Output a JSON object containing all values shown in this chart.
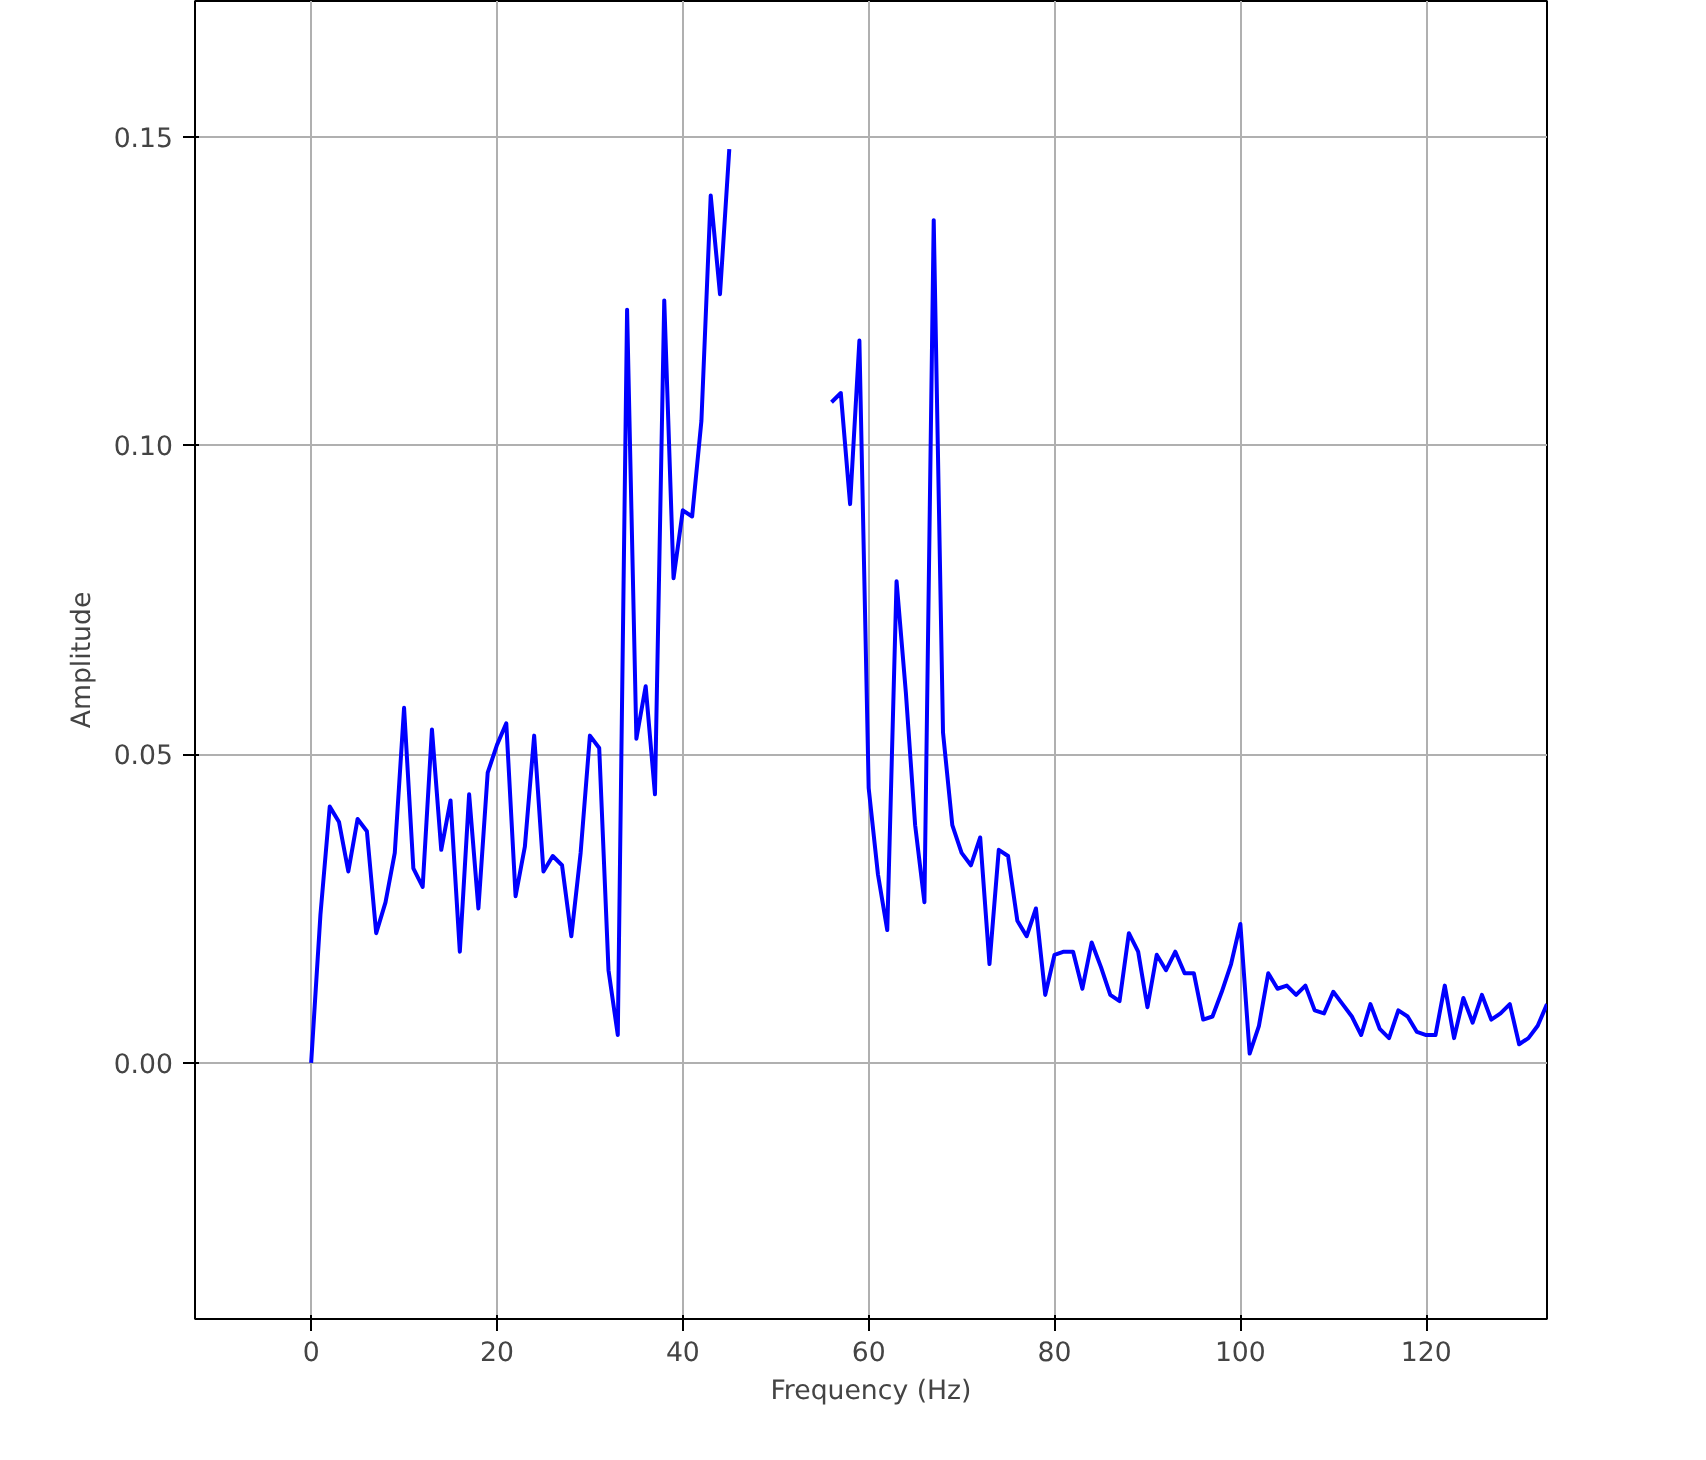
{
  "chart_data": {
    "type": "line",
    "xlabel": "Frequency (Hz)",
    "ylabel": "Amplitude",
    "x": [
      0,
      1,
      2,
      3,
      4,
      5,
      6,
      7,
      8,
      9,
      10,
      11,
      12,
      13,
      14,
      15,
      16,
      17,
      18,
      19,
      20,
      21,
      22,
      23,
      24,
      25,
      26,
      27,
      28,
      29,
      30,
      31,
      32,
      33,
      34,
      35,
      36,
      37,
      38,
      39,
      40,
      41,
      42,
      43,
      44,
      45,
      46,
      47,
      48,
      49,
      50,
      51,
      52,
      53,
      54,
      55,
      56,
      57,
      58,
      59,
      60,
      61,
      62,
      63,
      64,
      65,
      66,
      67,
      68,
      69,
      70,
      71,
      72,
      73,
      74,
      75,
      76,
      77,
      78,
      79,
      80,
      81,
      82,
      83,
      84,
      85,
      86,
      87,
      88,
      89,
      90,
      91,
      92,
      93,
      94,
      95,
      96,
      97,
      98,
      99,
      100,
      101,
      102,
      103,
      104,
      105,
      106,
      107,
      108,
      109,
      110,
      111,
      112,
      113,
      114,
      115,
      116,
      117,
      118,
      119,
      120,
      121,
      122,
      123,
      124,
      125,
      126,
      127,
      128,
      129,
      130,
      131,
      132,
      133
    ],
    "series": [
      {
        "color": "#0000ff",
        "values": [
          0,
          0.024,
          0.0415,
          0.039,
          0.031,
          0.0395,
          0.0375,
          0.021,
          0.026,
          0.034,
          0.0575,
          0.0315,
          0.0285,
          0.054,
          0.0345,
          0.0425,
          0.018,
          0.0435,
          0.025,
          0.047,
          0.0515,
          0.055,
          0.027,
          0.035,
          0.053,
          0.031,
          0.0335,
          0.032,
          0.0205,
          0.034,
          0.053,
          0.051,
          0.015,
          0.0045,
          0.122,
          0.0525,
          0.061,
          0.0435,
          0.1235,
          0.0785,
          0.0895,
          0.0885,
          0.104,
          0.1405,
          0.1245,
          0.148,
          null,
          null,
          null,
          null,
          null,
          null,
          null,
          null,
          null,
          null,
          0.107,
          0.1085,
          0.0905,
          0.117,
          0.0445,
          0.0305,
          0.0215,
          0.078,
          0.06,
          0.0385,
          0.026,
          0.1365,
          0.0535,
          0.0385,
          0.034,
          0.032,
          0.0365,
          0.016,
          0.0345,
          0.0335,
          0.023,
          0.0205,
          0.025,
          0.011,
          0.0175,
          0.018,
          0.018,
          0.012,
          0.0195,
          0.0155,
          0.011,
          0.01,
          0.021,
          0.018,
          0.009,
          0.0175,
          0.015,
          0.018,
          0.0145,
          0.0145,
          0.007,
          0.0075,
          0.0115,
          0.016,
          0.0225,
          0.0015,
          0.006,
          0.0145,
          0.012,
          0.0125,
          0.011,
          0.0125,
          0.0085,
          0.008,
          0.0115,
          0.0095,
          0.0075,
          0.0045,
          0.0095,
          0.0055,
          0.004,
          0.0085,
          0.0075,
          0.005,
          0.0045,
          0.0045,
          0.0125,
          0.004,
          0.0105,
          0.0065,
          0.011,
          0.007,
          0.008,
          0.0095,
          0.003,
          0.004,
          0.006,
          0.0095
        ]
      }
    ],
    "xlim": [
      -12.5,
      133
    ],
    "ylim": [
      -0.0415,
      0.172
    ],
    "xticks": [
      0,
      20,
      40,
      60,
      80,
      100,
      120
    ],
    "yticks": [
      {
        "value": 0,
        "label": "0.00"
      },
      {
        "value": 0.05,
        "label": "0.05"
      },
      {
        "value": 0.1,
        "label": "0.10"
      },
      {
        "value": 0.15,
        "label": "0.15"
      }
    ],
    "grid": true,
    "line_style": "solid"
  }
}
